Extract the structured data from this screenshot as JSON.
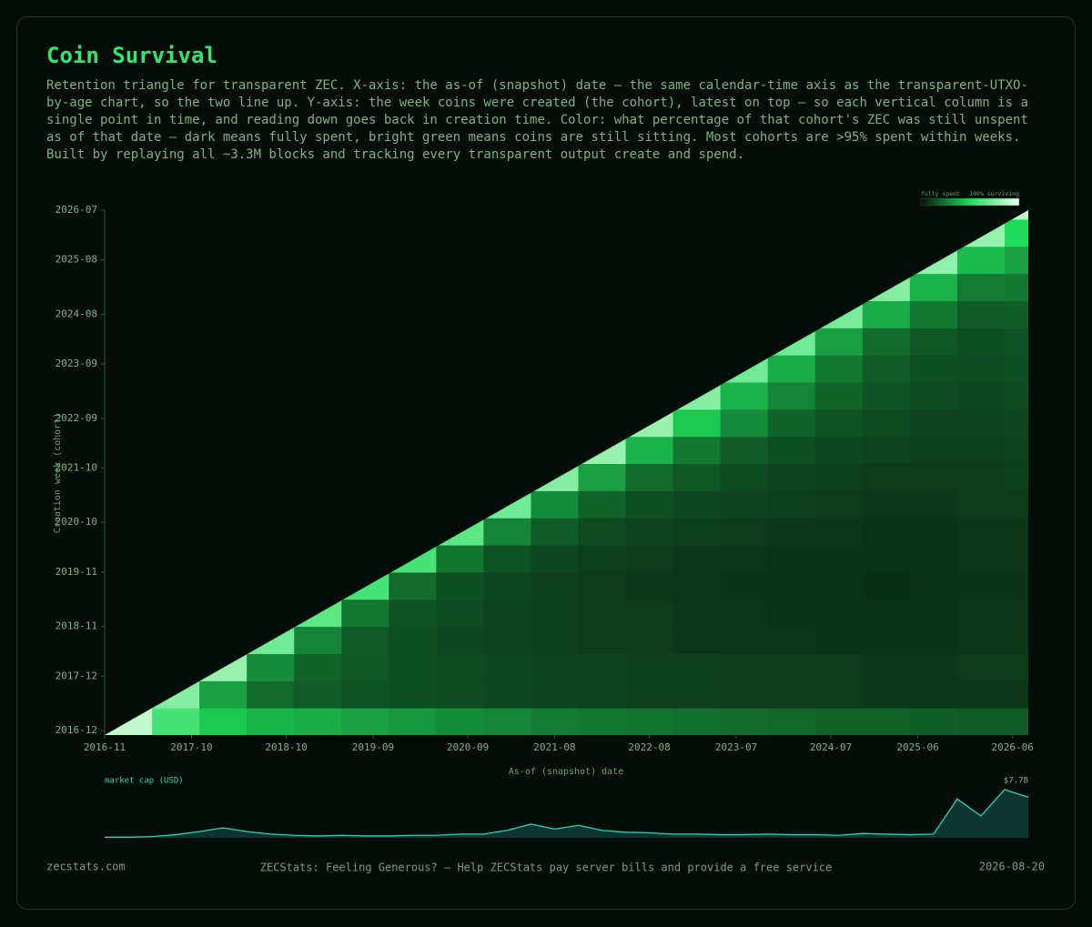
{
  "chart_data": [
    {
      "type": "heatmap",
      "title": "Coin Survival",
      "subtitle": "Retention triangle for transparent ZEC. X-axis: the as-of (snapshot) date — the same calendar-time axis as the transparent-UTXO-by-age chart, so the two line up. Y-axis: the week coins were created (the cohort), latest on top — so each vertical column is a single point in time, and reading down goes back in creation time. Color: what percentage of that cohort's ZEC was still unspent as of that date — dark means fully spent, bright green means coins are still sitting. Most cohorts are >95% spent within weeks. Built by replaying all ~3.3M blocks and tracking every transparent output create and spend.",
      "x_label": "As-of (snapshot) date",
      "y_label": "Creation week (cohort)",
      "legend_min_label": "fully spent",
      "legend_max_label": "100% surviving",
      "color_min": "#07130a",
      "color_mid": "#1fdc5a",
      "color_max": "#eaffea",
      "color_range": [
        0,
        100
      ],
      "xlim": [
        "2016-11",
        "2026-08"
      ],
      "ylim": [
        "2016-11",
        "2026-07"
      ],
      "xticks": [
        "2016-11",
        "2017-10",
        "2018-10",
        "2019-09",
        "2020-09",
        "2021-08",
        "2022-08",
        "2023-07",
        "2024-07",
        "2025-06",
        "2026-06"
      ],
      "yticks": [
        "2016-12",
        "2017-12",
        "2018-11",
        "2019-11",
        "2020-10",
        "2021-10",
        "2022-09",
        "2023-09",
        "2024-08",
        "2025-08",
        "2026-07"
      ],
      "x": [
        "2016-11",
        "2017-05",
        "2017-11",
        "2018-05",
        "2018-11",
        "2019-05",
        "2019-11",
        "2020-05",
        "2020-11",
        "2021-05",
        "2021-11",
        "2022-05",
        "2022-11",
        "2023-05",
        "2023-11",
        "2024-05",
        "2024-11",
        "2025-05",
        "2025-11",
        "2026-05"
      ],
      "y": [
        "2016-11",
        "2017-05",
        "2017-11",
        "2018-05",
        "2018-11",
        "2019-05",
        "2019-11",
        "2020-05",
        "2020-11",
        "2021-05",
        "2021-11",
        "2022-05",
        "2022-11",
        "2023-05",
        "2023-11",
        "2024-05",
        "2024-11",
        "2025-05",
        "2025-11",
        "2026-05"
      ],
      "values": [
        [
          90,
          60,
          45,
          40,
          38,
          35,
          33,
          30,
          28,
          26,
          25,
          24,
          23,
          22,
          21,
          20,
          20,
          19,
          18,
          18
        ],
        [
          null,
          75,
          35,
          22,
          18,
          16,
          15,
          14,
          13,
          12,
          12,
          11,
          11,
          10,
          10,
          10,
          9,
          9,
          9,
          9
        ],
        [
          null,
          null,
          80,
          30,
          20,
          17,
          15,
          14,
          13,
          12,
          12,
          11,
          11,
          10,
          10,
          10,
          9,
          9,
          10,
          10
        ],
        [
          null,
          null,
          null,
          70,
          28,
          18,
          15,
          13,
          12,
          11,
          10,
          10,
          9,
          9,
          9,
          8,
          8,
          8,
          9,
          9
        ],
        [
          null,
          null,
          null,
          null,
          65,
          25,
          16,
          14,
          12,
          11,
          10,
          10,
          9,
          9,
          8,
          8,
          8,
          8,
          9,
          9
        ],
        [
          null,
          null,
          null,
          null,
          null,
          60,
          22,
          15,
          13,
          11,
          10,
          9,
          9,
          8,
          8,
          8,
          7,
          8,
          8,
          8
        ],
        [
          null,
          null,
          null,
          null,
          null,
          null,
          60,
          24,
          16,
          13,
          11,
          10,
          9,
          9,
          8,
          8,
          8,
          8,
          9,
          9
        ],
        [
          null,
          null,
          null,
          null,
          null,
          null,
          null,
          65,
          28,
          18,
          14,
          12,
          11,
          10,
          9,
          9,
          8,
          8,
          9,
          9
        ],
        [
          null,
          null,
          null,
          null,
          null,
          null,
          null,
          null,
          70,
          30,
          20,
          15,
          13,
          12,
          11,
          10,
          9,
          9,
          10,
          10
        ],
        [
          null,
          null,
          null,
          null,
          null,
          null,
          null,
          null,
          null,
          75,
          35,
          22,
          17,
          14,
          12,
          11,
          10,
          10,
          10,
          11
        ],
        [
          null,
          null,
          null,
          null,
          null,
          null,
          null,
          null,
          null,
          null,
          80,
          40,
          25,
          18,
          15,
          13,
          12,
          11,
          11,
          12
        ],
        [
          null,
          null,
          null,
          null,
          null,
          null,
          null,
          null,
          null,
          null,
          null,
          80,
          45,
          30,
          20,
          16,
          14,
          12,
          12,
          13
        ],
        [
          null,
          null,
          null,
          null,
          null,
          null,
          null,
          null,
          null,
          null,
          null,
          null,
          75,
          40,
          28,
          20,
          16,
          14,
          13,
          14
        ],
        [
          null,
          null,
          null,
          null,
          null,
          null,
          null,
          null,
          null,
          null,
          null,
          null,
          null,
          70,
          38,
          25,
          18,
          15,
          14,
          15
        ],
        [
          null,
          null,
          null,
          null,
          null,
          null,
          null,
          null,
          null,
          null,
          null,
          null,
          null,
          null,
          70,
          35,
          22,
          17,
          15,
          16
        ],
        [
          null,
          null,
          null,
          null,
          null,
          null,
          null,
          null,
          null,
          null,
          null,
          null,
          null,
          null,
          null,
          72,
          38,
          25,
          18,
          19
        ],
        [
          null,
          null,
          null,
          null,
          null,
          null,
          null,
          null,
          null,
          null,
          null,
          null,
          null,
          null,
          null,
          null,
          75,
          40,
          26,
          25
        ],
        [
          null,
          null,
          null,
          null,
          null,
          null,
          null,
          null,
          null,
          null,
          null,
          null,
          null,
          null,
          null,
          null,
          null,
          78,
          42,
          35
        ],
        [
          null,
          null,
          null,
          null,
          null,
          null,
          null,
          null,
          null,
          null,
          null,
          null,
          null,
          null,
          null,
          null,
          null,
          null,
          80,
          50
        ],
        [
          null,
          null,
          null,
          null,
          null,
          null,
          null,
          null,
          null,
          null,
          null,
          null,
          null,
          null,
          null,
          null,
          null,
          null,
          null,
          90
        ]
      ]
    },
    {
      "type": "area",
      "title": "market cap (USD)",
      "max_label": "$7.7B",
      "color": "#2ad4b0",
      "fill": "#0c3530",
      "xlim": [
        "2016-11",
        "2026-08"
      ],
      "ylim": [
        0,
        7.7
      ],
      "x": [
        "2016-11",
        "2017-02",
        "2017-05",
        "2017-08",
        "2017-11",
        "2018-02",
        "2018-05",
        "2018-08",
        "2018-11",
        "2019-02",
        "2019-05",
        "2019-08",
        "2019-11",
        "2020-02",
        "2020-05",
        "2020-08",
        "2020-11",
        "2021-02",
        "2021-05",
        "2021-08",
        "2021-11",
        "2022-02",
        "2022-05",
        "2022-08",
        "2022-11",
        "2023-02",
        "2023-05",
        "2023-08",
        "2023-11",
        "2024-02",
        "2024-05",
        "2024-08",
        "2024-11",
        "2025-02",
        "2025-05",
        "2025-08",
        "2025-11",
        "2026-02",
        "2026-05",
        "2026-08"
      ],
      "values": [
        0.1,
        0.1,
        0.2,
        0.5,
        1.0,
        1.6,
        1.0,
        0.6,
        0.4,
        0.3,
        0.4,
        0.3,
        0.3,
        0.4,
        0.4,
        0.6,
        0.6,
        1.2,
        2.2,
        1.4,
        2.0,
        1.2,
        0.9,
        0.8,
        0.6,
        0.6,
        0.5,
        0.5,
        0.6,
        0.5,
        0.5,
        0.4,
        0.7,
        0.6,
        0.5,
        0.6,
        6.2,
        3.5,
        7.7,
        6.5
      ]
    }
  ],
  "footer": {
    "site": "zecstats.com",
    "message": "ZECStats: Feeling Generous? — Help ZECStats pay server bills and provide a free service",
    "date": "2026-08-20"
  }
}
